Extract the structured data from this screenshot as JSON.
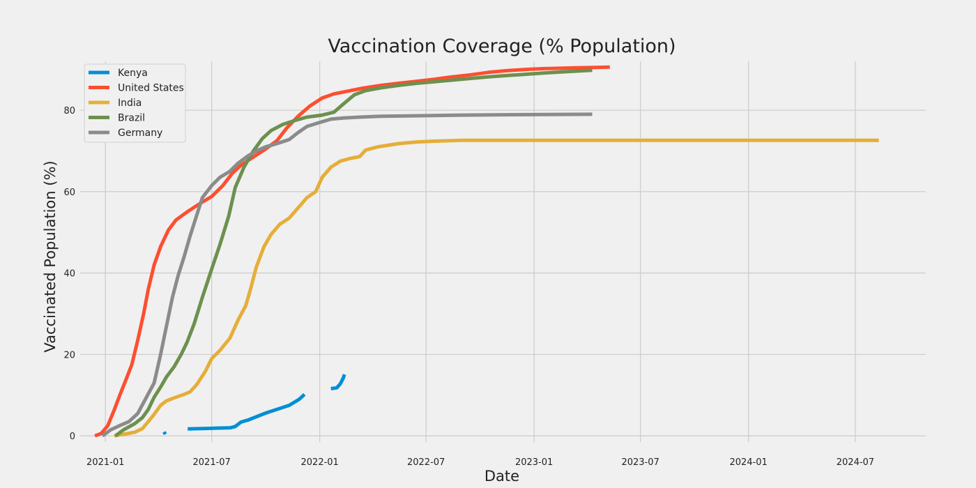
{
  "chart_data": {
    "type": "line",
    "title": "Vaccination Coverage (% Population)",
    "xlabel": "Date",
    "ylabel": "Vaccinated Population (%)",
    "xlim": [
      "2020-11-19",
      "2024-10-29"
    ],
    "ylim": [
      -1.5,
      92
    ],
    "grid": true,
    "legend_position": "top-left",
    "x_ticks": [
      "2021-01-01",
      "2021-07-01",
      "2022-01-01",
      "2022-07-01",
      "2023-01-01",
      "2023-07-01",
      "2024-01-01",
      "2024-07-01"
    ],
    "x_tick_labels": [
      "2021-01",
      "2021-07",
      "2022-01",
      "2022-07",
      "2023-01",
      "2023-07",
      "2024-01",
      "2024-07"
    ],
    "y_ticks": [
      0,
      20,
      40,
      60,
      80
    ],
    "y_tick_labels": [
      "0",
      "20",
      "40",
      "60",
      "80"
    ],
    "series": [
      {
        "name": "Kenya",
        "color": "#008fd5",
        "segments": [
          [
            [
              "2021-04-11",
              1.0
            ],
            [
              "2021-04-13",
              0.4
            ]
          ],
          [
            [
              "2021-05-21",
              1.7
            ],
            [
              "2021-06-15",
              1.8
            ],
            [
              "2021-07-10",
              1.9
            ],
            [
              "2021-08-02",
              2.0
            ],
            [
              "2021-08-10",
              2.3
            ],
            [
              "2021-08-20",
              3.4
            ],
            [
              "2021-09-01",
              3.9
            ],
            [
              "2021-09-15",
              4.7
            ],
            [
              "2021-10-01",
              5.6
            ],
            [
              "2021-10-20",
              6.5
            ],
            [
              "2021-11-10",
              7.5
            ],
            [
              "2021-11-27",
              9.0
            ],
            [
              "2021-12-06",
              10.2
            ]
          ],
          [
            [
              "2022-01-20",
              11.6
            ],
            [
              "2022-01-30",
              11.8
            ],
            [
              "2022-02-05",
              12.8
            ],
            [
              "2022-02-10",
              14.2
            ],
            [
              "2022-02-12",
              15.1
            ]
          ]
        ]
      },
      {
        "name": "United States",
        "color": "#fc4f30",
        "segments": [
          [
            [
              "2020-12-14",
              0.0
            ],
            [
              "2020-12-25",
              0.6
            ],
            [
              "2021-01-05",
              2.5
            ],
            [
              "2021-01-15",
              6.0
            ],
            [
              "2021-01-25",
              9.8
            ],
            [
              "2021-02-05",
              13.8
            ],
            [
              "2021-02-15",
              17.5
            ],
            [
              "2021-02-25",
              23.5
            ],
            [
              "2021-03-07",
              30.0
            ],
            [
              "2021-03-15",
              36.0
            ],
            [
              "2021-03-25",
              42.0
            ],
            [
              "2021-04-05",
              46.5
            ],
            [
              "2021-04-18",
              50.5
            ],
            [
              "2021-05-01",
              53.0
            ],
            [
              "2021-05-20",
              55.0
            ],
            [
              "2021-06-10",
              57.0
            ],
            [
              "2021-07-01",
              58.8
            ],
            [
              "2021-07-20",
              61.5
            ],
            [
              "2021-08-05",
              64.5
            ],
            [
              "2021-08-20",
              66.5
            ],
            [
              "2021-09-10",
              68.5
            ],
            [
              "2021-10-01",
              70.5
            ],
            [
              "2021-10-20",
              72.5
            ],
            [
              "2021-11-05",
              75.5
            ],
            [
              "2021-11-25",
              78.5
            ],
            [
              "2021-12-15",
              81.0
            ],
            [
              "2022-01-05",
              83.0
            ],
            [
              "2022-01-25",
              84.0
            ],
            [
              "2022-02-15",
              84.6
            ],
            [
              "2022-03-15",
              85.4
            ],
            [
              "2022-04-15",
              86.1
            ],
            [
              "2022-05-15",
              86.6
            ],
            [
              "2022-06-15",
              87.1
            ],
            [
              "2022-07-15",
              87.6
            ],
            [
              "2022-08-15",
              88.2
            ],
            [
              "2022-09-15",
              88.7
            ],
            [
              "2022-10-15",
              89.3
            ],
            [
              "2022-11-15",
              89.7
            ],
            [
              "2022-12-15",
              90.0
            ],
            [
              "2023-01-15",
              90.2
            ],
            [
              "2023-02-15",
              90.3
            ],
            [
              "2023-03-15",
              90.4
            ],
            [
              "2023-04-15",
              90.5
            ],
            [
              "2023-05-10",
              90.6
            ]
          ]
        ]
      },
      {
        "name": "India",
        "color": "#e5ae38",
        "segments": [
          [
            [
              "2021-01-16",
              0.0
            ],
            [
              "2021-02-01",
              0.4
            ],
            [
              "2021-02-20",
              0.9
            ],
            [
              "2021-03-05",
              1.8
            ],
            [
              "2021-03-15",
              3.5
            ],
            [
              "2021-03-25",
              5.3
            ],
            [
              "2021-04-05",
              7.5
            ],
            [
              "2021-04-15",
              8.6
            ],
            [
              "2021-05-01",
              9.5
            ],
            [
              "2021-05-15",
              10.2
            ],
            [
              "2021-05-25",
              10.8
            ],
            [
              "2021-06-05",
              12.5
            ],
            [
              "2021-06-20",
              15.8
            ],
            [
              "2021-07-01",
              19.0
            ],
            [
              "2021-07-15",
              21.0
            ],
            [
              "2021-08-01",
              24.0
            ],
            [
              "2021-08-15",
              28.5
            ],
            [
              "2021-08-28",
              32.0
            ],
            [
              "2021-09-05",
              36.0
            ],
            [
              "2021-09-15",
              41.5
            ],
            [
              "2021-09-28",
              46.5
            ],
            [
              "2021-10-10",
              49.5
            ],
            [
              "2021-10-25",
              52.0
            ],
            [
              "2021-11-10",
              53.5
            ],
            [
              "2021-11-25",
              56.0
            ],
            [
              "2021-12-10",
              58.5
            ],
            [
              "2021-12-25",
              60.0
            ],
            [
              "2022-01-05",
              63.5
            ],
            [
              "2022-01-20",
              66.0
            ],
            [
              "2022-02-05",
              67.5
            ],
            [
              "2022-02-20",
              68.1
            ],
            [
              "2022-03-10",
              68.6
            ],
            [
              "2022-03-20",
              70.2
            ],
            [
              "2022-04-10",
              71.0
            ],
            [
              "2022-05-15",
              71.8
            ],
            [
              "2022-06-15",
              72.2
            ],
            [
              "2022-07-15",
              72.4
            ],
            [
              "2022-09-01",
              72.6
            ],
            [
              "2022-12-01",
              72.6
            ],
            [
              "2023-06-01",
              72.6
            ],
            [
              "2024-01-01",
              72.6
            ],
            [
              "2024-08-10",
              72.6
            ]
          ]
        ]
      },
      {
        "name": "Brazil",
        "color": "#6d904f",
        "segments": [
          [
            [
              "2021-01-18",
              0.0
            ],
            [
              "2021-02-01",
              1.5
            ],
            [
              "2021-02-20",
              3.0
            ],
            [
              "2021-03-05",
              4.5
            ],
            [
              "2021-03-15",
              6.5
            ],
            [
              "2021-03-25",
              9.5
            ],
            [
              "2021-04-05",
              12.0
            ],
            [
              "2021-04-15",
              14.5
            ],
            [
              "2021-04-28",
              17.0
            ],
            [
              "2021-05-10",
              20.0
            ],
            [
              "2021-05-20",
              23.0
            ],
            [
              "2021-06-01",
              27.5
            ],
            [
              "2021-06-15",
              34.0
            ],
            [
              "2021-07-01",
              41.0
            ],
            [
              "2021-07-15",
              47.0
            ],
            [
              "2021-07-30",
              54.0
            ],
            [
              "2021-08-10",
              61.0
            ],
            [
              "2021-08-25",
              66.0
            ],
            [
              "2021-09-10",
              70.0
            ],
            [
              "2021-09-25",
              73.0
            ],
            [
              "2021-10-10",
              75.0
            ],
            [
              "2021-10-30",
              76.5
            ],
            [
              "2021-11-20",
              77.5
            ],
            [
              "2021-12-10",
              78.3
            ],
            [
              "2022-01-05",
              78.8
            ],
            [
              "2022-01-25",
              79.5
            ],
            [
              "2022-02-10",
              81.5
            ],
            [
              "2022-03-01",
              83.8
            ],
            [
              "2022-03-20",
              84.8
            ],
            [
              "2022-04-15",
              85.5
            ],
            [
              "2022-05-15",
              86.1
            ],
            [
              "2022-06-15",
              86.6
            ],
            [
              "2022-07-15",
              87.0
            ],
            [
              "2022-08-15",
              87.4
            ],
            [
              "2022-09-15",
              87.8
            ],
            [
              "2022-10-15",
              88.2
            ],
            [
              "2022-11-15",
              88.5
            ],
            [
              "2022-12-15",
              88.8
            ],
            [
              "2023-01-15",
              89.1
            ],
            [
              "2023-02-15",
              89.4
            ],
            [
              "2023-03-15",
              89.6
            ],
            [
              "2023-04-10",
              89.8
            ]
          ]
        ]
      },
      {
        "name": "Germany",
        "color": "#8b8b8b",
        "segments": [
          [
            [
              "2020-12-27",
              0.0
            ],
            [
              "2021-01-10",
              1.5
            ],
            [
              "2021-01-25",
              2.5
            ],
            [
              "2021-02-10",
              3.5
            ],
            [
              "2021-02-25",
              5.5
            ],
            [
              "2021-03-10",
              9.0
            ],
            [
              "2021-03-25",
              13.0
            ],
            [
              "2021-04-05",
              20.0
            ],
            [
              "2021-04-15",
              27.0
            ],
            [
              "2021-04-25",
              34.0
            ],
            [
              "2021-05-05",
              39.5
            ],
            [
              "2021-05-15",
              44.0
            ],
            [
              "2021-05-25",
              49.0
            ],
            [
              "2021-06-05",
              54.0
            ],
            [
              "2021-06-15",
              58.5
            ],
            [
              "2021-07-01",
              61.5
            ],
            [
              "2021-07-15",
              63.5
            ],
            [
              "2021-08-01",
              65.0
            ],
            [
              "2021-08-15",
              67.0
            ],
            [
              "2021-09-01",
              68.8
            ],
            [
              "2021-09-15",
              70.0
            ],
            [
              "2021-10-01",
              71.0
            ],
            [
              "2021-10-20",
              71.8
            ],
            [
              "2021-11-10",
              72.8
            ],
            [
              "2021-11-25",
              74.5
            ],
            [
              "2021-12-10",
              76.0
            ],
            [
              "2022-01-01",
              77.0
            ],
            [
              "2022-01-20",
              77.8
            ],
            [
              "2022-02-10",
              78.1
            ],
            [
              "2022-03-10",
              78.3
            ],
            [
              "2022-04-15",
              78.5
            ],
            [
              "2022-06-01",
              78.6
            ],
            [
              "2022-09-01",
              78.8
            ],
            [
              "2022-12-01",
              78.9
            ],
            [
              "2023-04-10",
              79.0
            ]
          ]
        ]
      }
    ]
  }
}
